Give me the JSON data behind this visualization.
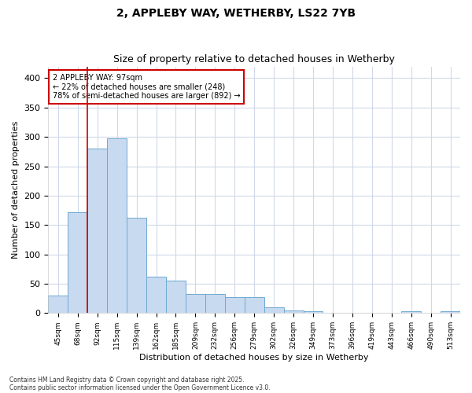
{
  "title1": "2, APPLEBY WAY, WETHERBY, LS22 7YB",
  "title2": "Size of property relative to detached houses in Wetherby",
  "xlabel": "Distribution of detached houses by size in Wetherby",
  "ylabel": "Number of detached properties",
  "bar_color": "#c8daf0",
  "bar_edge_color": "#6fa8d0",
  "categories": [
    "45sqm",
    "68sqm",
    "92sqm",
    "115sqm",
    "139sqm",
    "162sqm",
    "185sqm",
    "209sqm",
    "232sqm",
    "256sqm",
    "279sqm",
    "302sqm",
    "326sqm",
    "349sqm",
    "373sqm",
    "396sqm",
    "419sqm",
    "443sqm",
    "466sqm",
    "490sqm",
    "513sqm"
  ],
  "values": [
    30,
    172,
    280,
    297,
    163,
    62,
    55,
    33,
    33,
    27,
    27,
    10,
    5,
    3,
    0,
    0,
    0,
    0,
    3,
    0,
    3
  ],
  "red_line_index": 2,
  "annotation_line1": "2 APPLEBY WAY: 97sqm",
  "annotation_line2": "← 22% of detached houses are smaller (248)",
  "annotation_line3": "78% of semi-detached houses are larger (892) →",
  "annotation_box_color": "#ffffff",
  "annotation_border_color": "#cc0000",
  "footnote1": "Contains HM Land Registry data © Crown copyright and database right 2025.",
  "footnote2": "Contains public sector information licensed under the Open Government Licence v3.0.",
  "ylim": [
    0,
    420
  ],
  "yticks": [
    0,
    50,
    100,
    150,
    200,
    250,
    300,
    350,
    400
  ],
  "background_color": "#ffffff",
  "grid_color": "#d0d8e8"
}
